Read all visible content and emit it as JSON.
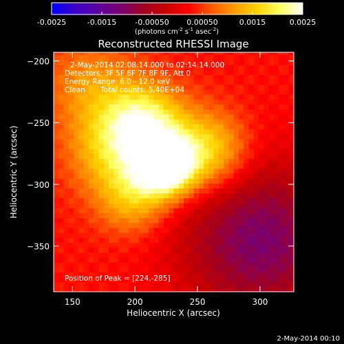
{
  "chart_data": {
    "type": "heatmap",
    "title": "Reconstructed RHESSI Image",
    "xlabel": "Heliocentric X (arcsec)",
    "ylabel": "Heliocentric Y (arcsec)",
    "xlim": [
      135,
      327
    ],
    "ylim": [
      -387,
      -193
    ],
    "xticks": [
      150,
      200,
      250,
      300
    ],
    "yticks": [
      -200,
      -250,
      -300,
      -350
    ],
    "colorbar": {
      "range": [
        -0.0025,
        0.0025
      ],
      "ticks": [
        "-0.0025",
        "-0.0015",
        "-0.00050",
        "0.00050",
        "0.0015",
        "0.0025"
      ],
      "tick_values": [
        -0.0025,
        -0.0015,
        -0.0005,
        0.0005,
        0.0015,
        0.0025
      ],
      "unit_label": "(photons cm",
      "unit_sup1": "-2",
      "unit_mid": " s",
      "unit_sup2": "-1",
      "unit_end": " asec",
      "unit_sup3": "-2",
      "unit_close": ")",
      "colors": [
        "#0000ff",
        "#3b00c8",
        "#5a00a0",
        "#7a0070",
        "#a00020",
        "#c80000",
        "#ff0000",
        "#ff5a00",
        "#ff9b00",
        "#ffd200",
        "#ffff60",
        "#ffffff"
      ]
    },
    "info": {
      "time_range": "2-May-2014 02:08:14.000 to 02:14:14.000",
      "detectors": "Detectors: 3F 5F 6F 7F 8F 9F, Att 0",
      "energy": "Energy Range: 6.0 - 12.0 keV",
      "method": "Clean",
      "counts": "Total counts: 5.40E+04"
    },
    "peak_label": "Position of Peak = [224,-285]",
    "peak": [
      224,
      -285
    ],
    "sources": [
      {
        "x": 224,
        "y": -285,
        "peak": 0.0028,
        "sigma": 16
      },
      {
        "x": 208,
        "y": -250,
        "peak": 0.0018,
        "sigma": 22
      },
      {
        "x": 258,
        "y": -273,
        "peak": 0.0015,
        "sigma": 22
      },
      {
        "x": 180,
        "y": -272,
        "peak": 0.0011,
        "sigma": 24
      },
      {
        "x": 198,
        "y": -310,
        "peak": 0.0011,
        "sigma": 20
      },
      {
        "x": 165,
        "y": -220,
        "peak": 0.0008,
        "sigma": 25
      }
    ],
    "background": {
      "level": 0.0003,
      "negative_region": {
        "x": 300,
        "y": -345,
        "depth": -0.0014,
        "sigma": 45
      }
    }
  },
  "footer_timestamp": "2-May-2014 00:10"
}
